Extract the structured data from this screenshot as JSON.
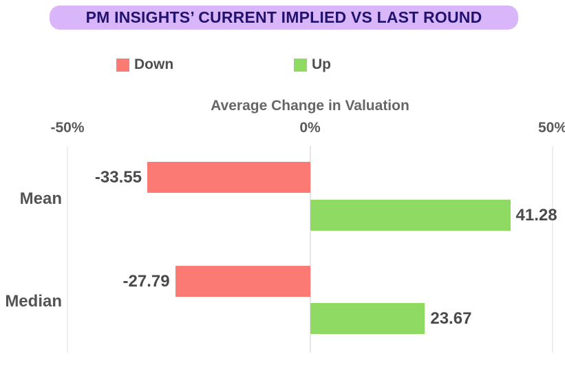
{
  "title_banner": {
    "text": "PM INSIGHTS’ CURRENT IMPLIED VS LAST ROUND",
    "bg_color": "#d9b6f9",
    "text_color": "#221270"
  },
  "chart_data": {
    "type": "bar",
    "orientation": "horizontal",
    "axis_title": "Average Change in Valuation",
    "categories": [
      "Mean",
      "Median"
    ],
    "series": [
      {
        "name": "Down",
        "color": "#fb7a74",
        "values": [
          -33.55,
          -27.79
        ]
      },
      {
        "name": "Up",
        "color": "#8eda62",
        "values": [
          41.28,
          23.67
        ]
      }
    ],
    "x_ticks": [
      {
        "label": "-50%",
        "value": -50
      },
      {
        "label": "0%",
        "value": 0
      },
      {
        "label": "50%",
        "value": 50
      }
    ],
    "xlim": [
      -50,
      50
    ],
    "grid": true,
    "legend_position": "top",
    "value_labels": [
      "-33.55",
      "41.28",
      "-27.79",
      "23.67"
    ]
  }
}
